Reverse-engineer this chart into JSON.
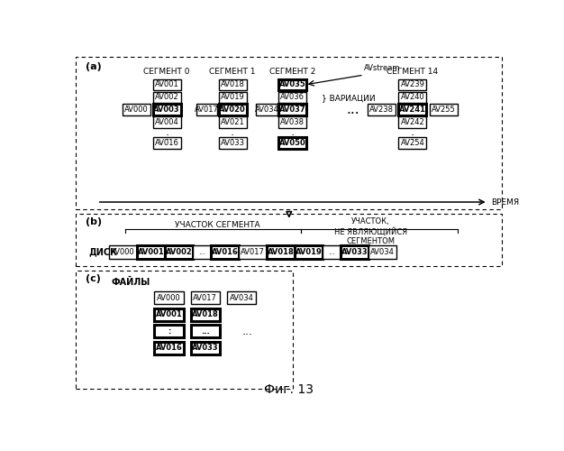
{
  "title": "Фиг. 13",
  "panel_a_label": "(a)",
  "panel_b_label": "(b)",
  "panel_c_label": "(c)",
  "seg0_label": "СЕГМЕНТ 0",
  "seg1_label": "СЕГМЕНТ 1",
  "seg2_label": "СЕГМЕНТ 2",
  "seg14_label": "СЕГМЕНТ 14",
  "avstream_label": "AVstream",
  "variations_label": "ВАРИАЦИИ",
  "time_label": "ВРЕМЯ",
  "disk_label": "ДИСК",
  "files_label": "ФАЙЛЫ",
  "segment_area_label": "УЧАСТОК СЕГМЕНТА",
  "non_segment_label": "УЧАСТОК,\nНЕ ЯВЛЯЮЩИЙСЯ\nСЕГМЕНТОМ",
  "bg_color": "#ffffff",
  "text_color": "#000000"
}
